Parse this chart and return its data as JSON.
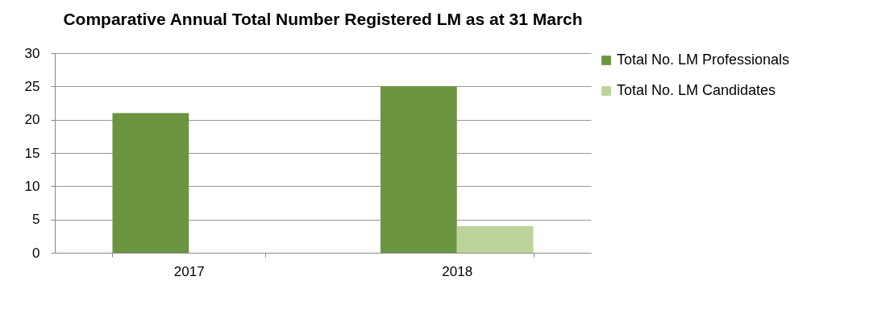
{
  "chart_data": {
    "type": "bar",
    "title": "Comparative Annual Total Number Registered LM as at 31 March",
    "categories": [
      "2017",
      "2018"
    ],
    "series": [
      {
        "name": "Total No. LM Professionals",
        "color": "#6b9440",
        "values": [
          21,
          25
        ]
      },
      {
        "name": "Total No. LM Candidates",
        "color": "#bcd39a",
        "values": [
          0,
          4
        ]
      }
    ],
    "ylim": [
      0,
      30
    ],
    "yticks": [
      0,
      5,
      10,
      15,
      20,
      25,
      30
    ],
    "grid": "y",
    "legend": "right"
  }
}
